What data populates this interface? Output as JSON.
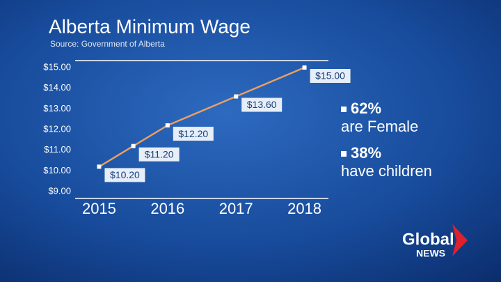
{
  "chart_data": {
    "type": "line",
    "title": "Alberta Minimum Wage",
    "subtitle": "Source: Government of Alberta",
    "x": [
      2015,
      2015.5,
      2016,
      2017,
      2018
    ],
    "series": [
      {
        "name": "Minimum wage",
        "color": "#e8a060",
        "values": [
          10.2,
          11.2,
          12.2,
          13.6,
          15.0
        ],
        "value_labels": [
          "$10.20",
          "$11.20",
          "$12.20",
          "$13.60",
          "$15.00"
        ]
      }
    ],
    "xlim": [
      2014.65,
      2018.35
    ],
    "xticks": [
      2015,
      2016,
      2017,
      2018
    ],
    "ylim": [
      9,
      15
    ],
    "yticks": [
      {
        "value": 9,
        "label": "$9.00"
      },
      {
        "value": 10,
        "label": "$10.00"
      },
      {
        "value": 11,
        "label": "$11.00"
      },
      {
        "value": 12,
        "label": "$12.00"
      },
      {
        "value": 13,
        "label": "$13.00"
      },
      {
        "value": 14,
        "label": "$14.00"
      },
      {
        "value": 15,
        "label": "$15.00"
      }
    ],
    "stats": [
      {
        "label": "62%",
        "text": "are Female"
      },
      {
        "label": "38%",
        "text": "have children"
      }
    ]
  },
  "brand": {
    "name": "Global",
    "sub": "NEWS"
  }
}
